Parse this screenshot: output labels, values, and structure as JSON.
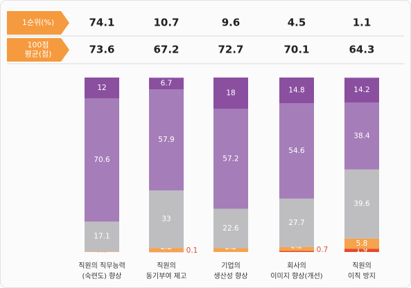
{
  "chart_data": {
    "type": "stacked_bar",
    "header_rows": [
      {
        "label": [
          "1순위(%)"
        ],
        "values": [
          "74.1",
          "10.7",
          "9.6",
          "4.5",
          "1.1"
        ]
      },
      {
        "label": [
          "100점",
          "평균(점)"
        ],
        "values": [
          "73.6",
          "67.2",
          "72.7",
          "70.1",
          "64.3"
        ]
      }
    ],
    "categories": [
      [
        "직원의 직무능력",
        "(숙련도) 향상"
      ],
      [
        "직원의",
        "동기부여 제고"
      ],
      [
        "기업의",
        "생산성 향상"
      ],
      [
        "회사의",
        "이미지 향상(개선)"
      ],
      [
        "직원의",
        "이직 방지"
      ]
    ],
    "ylim": [
      0,
      100
    ],
    "series": [
      {
        "color": "#e5492a",
        "values": [
          null,
          0.1,
          null,
          0.7,
          1.9
        ]
      },
      {
        "color": "#f5a34c",
        "values": [
          0.3,
          2.2,
          2.2,
          2.2,
          5.8
        ]
      },
      {
        "color": "#bebec0",
        "values": [
          17.1,
          33.0,
          22.6,
          27.7,
          39.6
        ]
      },
      {
        "color": "#a57db9",
        "values": [
          70.6,
          57.9,
          57.2,
          54.6,
          38.4
        ]
      },
      {
        "color": "#8b4f9f",
        "values": [
          12.0,
          6.7,
          18.0,
          14.8,
          14.2
        ]
      }
    ]
  }
}
